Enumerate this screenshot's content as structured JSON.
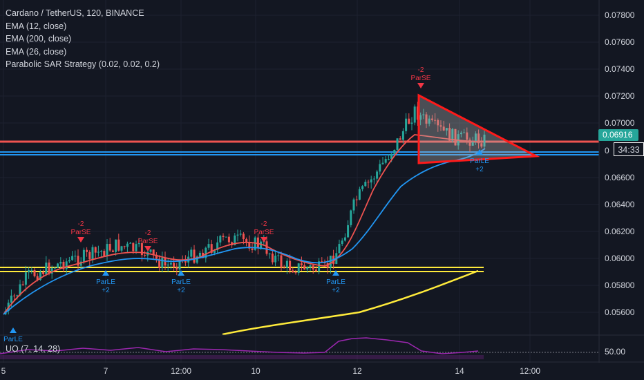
{
  "header": {
    "symbol_line": "Cardano / TetherUS, 120, BINANCE",
    "indicators": [
      "EMA (12, close)",
      "EMA (200, close)",
      "EMA (26, close)",
      "Parabolic SAR Strategy (0.02, 0.02, 0.2)"
    ],
    "oscillator_label": "UO (7, 14, 28)"
  },
  "price_axis": {
    "ticks": [
      "0.07800",
      "0.07600",
      "0.07400",
      "0.07200",
      "0.07000",
      "0.06600",
      "0.06400",
      "0.06200",
      "0.06000",
      "0.05800",
      "0.05600"
    ],
    "partial_tick": "0",
    "current_price": "0.06916",
    "countdown": "34:33",
    "oscillator_tick": "50.00"
  },
  "time_axis": {
    "ticks": [
      "5",
      "7",
      "12:00",
      "10",
      "12",
      "14",
      "12:00"
    ]
  },
  "colors": {
    "background": "#131722",
    "up": "#26a69a",
    "down": "#ef5350",
    "ema12": "#ef5350",
    "ema26": "#2196f3",
    "ema200": "#ffeb3b",
    "sar_long": "#2196f3",
    "sar_short": "#f23645",
    "oscillator": "#9c27b0"
  },
  "chart_data": {
    "type": "candlestick",
    "price_range": [
      0.0548,
      0.079
    ],
    "horizontal_levels": [
      {
        "price": 0.06885,
        "color": "#ef5350"
      },
      {
        "price": 0.06845,
        "color": "#2196f3"
      },
      {
        "price": 0.06825,
        "color": "#2196f3"
      },
      {
        "price": 0.05935,
        "color": "#ffeb3b"
      },
      {
        "price": 0.05905,
        "color": "#ffeb3b"
      }
    ],
    "signals": [
      {
        "type": "long",
        "label": "ParLE",
        "qty": ""
      },
      {
        "type": "short",
        "label": "ParSE",
        "qty": "-2"
      },
      {
        "type": "long",
        "label": "ParLE",
        "qty": "+2"
      },
      {
        "type": "short",
        "label": "ParSE",
        "qty": "-2"
      },
      {
        "type": "long",
        "label": "ParLE",
        "qty": "+2"
      },
      {
        "type": "short",
        "label": "ParSE",
        "qty": "-2"
      },
      {
        "type": "long",
        "label": "ParLE",
        "qty": "+2"
      },
      {
        "type": "short",
        "label": "ParSE",
        "qty": "-2"
      },
      {
        "type": "long",
        "label": "ParLE",
        "qty": "+2"
      }
    ],
    "triangle_pattern": {
      "apex_price": 0.0677,
      "top_price": 0.0722,
      "bottom_price": 0.0673
    }
  }
}
